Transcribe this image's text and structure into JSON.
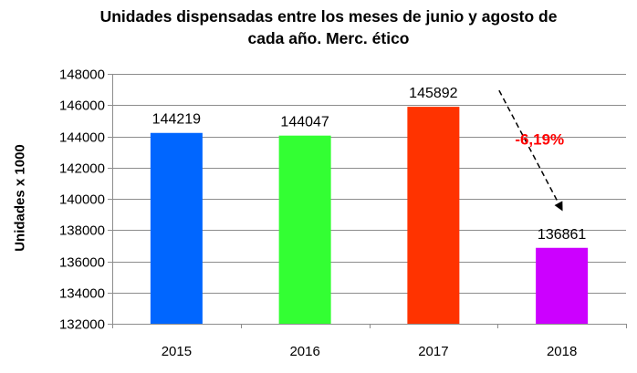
{
  "chart_data": {
    "type": "bar",
    "title": [
      "Unidades dispensadas entre los meses de junio y agosto de",
      "cada año. Merc. ético"
    ],
    "xlabel": "",
    "ylabel": "Unidades x 1000",
    "categories": [
      "2015",
      "2016",
      "2017",
      "2018"
    ],
    "values": [
      144219,
      144047,
      145892,
      136861
    ],
    "data_labels": [
      "144219",
      "144047",
      "145892",
      "136861"
    ],
    "bar_colors": [
      "#0066ff",
      "#33ff33",
      "#ff3300",
      "#cc00ff"
    ],
    "ylim": [
      132000,
      148000
    ],
    "yticks": [
      132000,
      134000,
      136000,
      138000,
      140000,
      142000,
      144000,
      146000,
      148000
    ],
    "grid": true,
    "legend": "none",
    "annotation": {
      "text": "-6,19%",
      "color": "#ff0000",
      "from_category": "2017",
      "to_category": "2018",
      "arrow_style": "dashed"
    }
  }
}
